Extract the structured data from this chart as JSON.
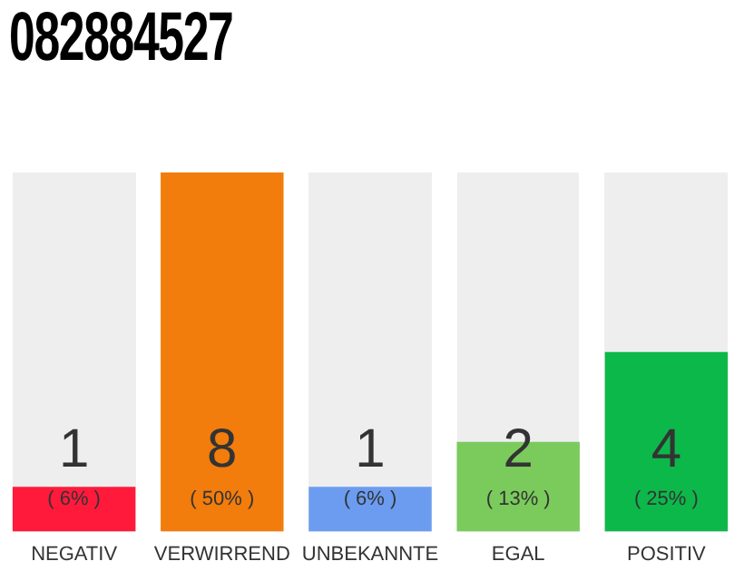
{
  "chart_data": {
    "type": "bar",
    "title": "082884527",
    "categories": [
      "NEGATIV",
      "VERWIRREND",
      "UNBEKANNTE",
      "EGAL",
      "POSITIV"
    ],
    "values": [
      1,
      8,
      1,
      2,
      4
    ],
    "colors": [
      "#ff1a3c",
      "#f27c0c",
      "#6b9cf0",
      "#7acb5c",
      "#0db84a"
    ],
    "data_labels": true,
    "annotations": [
      "( 6% )",
      "( 50% )",
      "( 6% )",
      "( 13% )",
      "( 25% )"
    ],
    "tick_labels": "x",
    "grid": false,
    "legend": false
  }
}
